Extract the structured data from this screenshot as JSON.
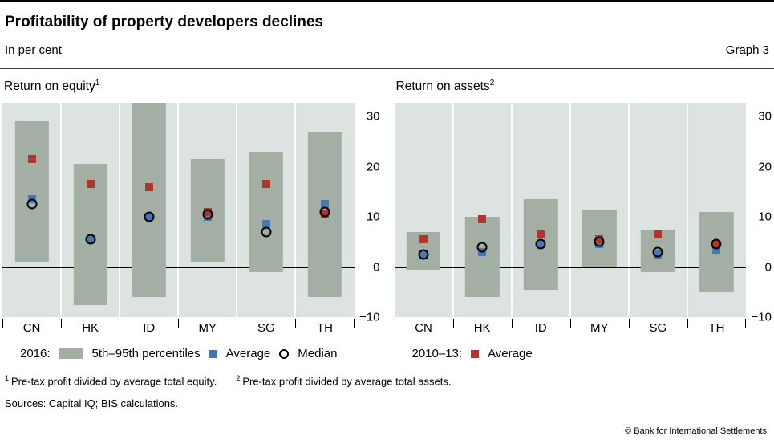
{
  "header": {
    "title": "Profitability of property developers declines",
    "subtitle": "In per cent",
    "graph_label": "Graph 3"
  },
  "legend": {
    "group1_label": "2016:",
    "percentiles_label": "5th–95th percentiles",
    "average_label": "Average",
    "median_label": "Median",
    "group2_label": "2010–13:",
    "average2_label": "Average"
  },
  "footnotes": [
    {
      "marker": "1",
      "text": "Pre-tax profit divided by average total equity."
    },
    {
      "marker": "2",
      "text": "Pre-tax profit divided by average total assets."
    }
  ],
  "sources": "Sources: Capital IQ; BIS calculations.",
  "copyright": "© Bank for International Settlements",
  "colors": {
    "bar": "#a3aea4",
    "plot_bg": "#dde3e1",
    "average_2016": "#4576b5",
    "average_2010_13": "#b0352c",
    "median_stroke": "#000000"
  },
  "chart_data": [
    {
      "type": "bar",
      "title": "Return on equity",
      "title_superscript": "1",
      "categories": [
        "CN",
        "HK",
        "ID",
        "MY",
        "SG",
        "TH"
      ],
      "ylim": [
        -10,
        30
      ],
      "ytick_values": [
        30,
        20,
        10,
        0,
        -10
      ],
      "ytick_labels": [
        "30",
        "20",
        "10",
        "0",
        "−10"
      ],
      "series": [
        {
          "id": "percentiles",
          "name": "5th–95th percentiles (2016)",
          "type": "range",
          "low": [
            1,
            -7.5,
            -6,
            1,
            -1,
            -6
          ],
          "high": [
            29,
            20.5,
            33,
            21.5,
            23,
            27
          ]
        },
        {
          "id": "average-2016",
          "name": "Average (2016)",
          "type": "square",
          "color_key": "average_2016",
          "values": [
            13.5,
            5.5,
            10,
            10,
            8.5,
            12.5
          ]
        },
        {
          "id": "average-2010-13",
          "name": "Average (2010–13)",
          "type": "square",
          "color_key": "average_2010_13",
          "values": [
            21.5,
            16.5,
            16,
            11,
            16.5,
            10.5
          ]
        },
        {
          "id": "median",
          "name": "Median (2016)",
          "type": "circle",
          "values": [
            12.5,
            5.5,
            10,
            10.5,
            7,
            11
          ]
        }
      ]
    },
    {
      "type": "bar",
      "title": "Return on assets",
      "title_superscript": "2",
      "categories": [
        "CN",
        "HK",
        "ID",
        "MY",
        "SG",
        "TH"
      ],
      "ylim": [
        -10,
        30
      ],
      "ytick_values": [
        30,
        20,
        10,
        0,
        -10
      ],
      "ytick_labels": [
        "30",
        "20",
        "10",
        "0",
        "−10"
      ],
      "series": [
        {
          "id": "percentiles",
          "name": "5th–95th percentiles (2016)",
          "type": "range",
          "low": [
            -0.5,
            -6,
            -4.5,
            0,
            -1,
            -5
          ],
          "high": [
            7,
            10,
            13.5,
            11.5,
            7.5,
            11
          ]
        },
        {
          "id": "average-2016",
          "name": "Average (2016)",
          "type": "square",
          "color_key": "average_2016",
          "values": [
            2.5,
            3,
            4.5,
            4.5,
            2.5,
            3.5
          ]
        },
        {
          "id": "average-2010-13",
          "name": "Average (2010–13)",
          "type": "square",
          "color_key": "average_2010_13",
          "values": [
            5.5,
            9.5,
            6.5,
            5.5,
            6.5,
            4.5
          ]
        },
        {
          "id": "median",
          "name": "Median (2016)",
          "type": "circle",
          "values": [
            2.5,
            4,
            4.5,
            5,
            3,
            4.5
          ]
        }
      ]
    }
  ]
}
